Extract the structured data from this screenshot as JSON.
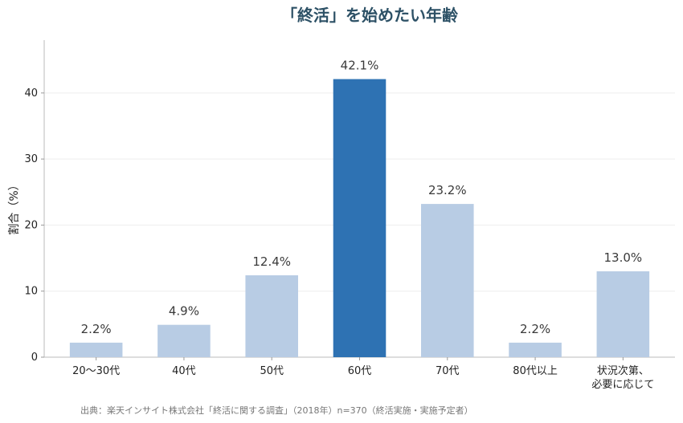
{
  "chart_data": {
    "type": "bar",
    "title": "「終活」を始めたい年齢",
    "ylabel": "割合（%）",
    "xlabel": "",
    "ylim": [
      0,
      48
    ],
    "yticks": [
      0,
      10,
      20,
      30,
      40
    ],
    "grid": true,
    "categories": [
      "20〜30代",
      "40代",
      "50代",
      "60代",
      "70代",
      "80代以上",
      "状況次第、\n必要に応じて"
    ],
    "values": [
      2.2,
      4.9,
      12.4,
      42.1,
      23.2,
      2.2,
      13.0
    ],
    "value_labels": [
      "2.2%",
      "4.9%",
      "12.4%",
      "42.1%",
      "23.2%",
      "2.2%",
      "13.0%"
    ],
    "highlight_index": 3,
    "colors": {
      "bar": "#b8cce4",
      "highlight": "#2e72b3",
      "title": "#2d5166"
    },
    "source": "出典：楽天インサイト株式会社「終活に関する調査」（2018年）n=370（終活実施・実施予定者）"
  }
}
